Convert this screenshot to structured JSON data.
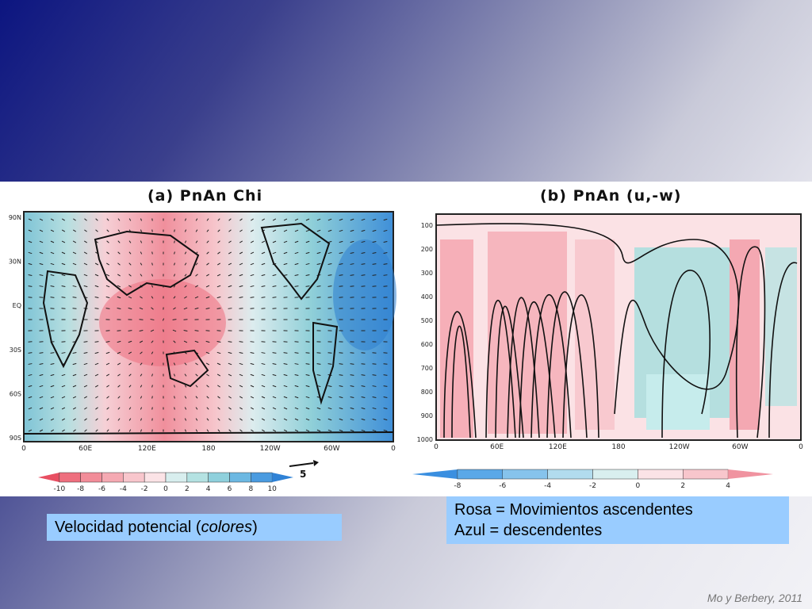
{
  "panel_a": {
    "title": "(a) PnAn   Chi",
    "x_ticks": [
      "0",
      "60E",
      "120E",
      "180",
      "120W",
      "60W",
      "0"
    ],
    "y_ticks": [
      "90N",
      "30N",
      "EQ",
      "30S",
      "60S",
      "90S"
    ],
    "colorbar_ticks": [
      "-10",
      "-8",
      "-6",
      "-4",
      "-2",
      "0",
      "2",
      "4",
      "6",
      "8",
      "10"
    ],
    "reference_vector": "5"
  },
  "panel_b": {
    "title": "(b) PnAn   (u,-w)",
    "x_ticks": [
      "0",
      "60E",
      "120E",
      "180",
      "120W",
      "60W",
      "0"
    ],
    "y_ticks": [
      "100",
      "200",
      "300",
      "400",
      "500",
      "600",
      "700",
      "800",
      "900",
      "1000"
    ],
    "colorbar_ticks": [
      "-8",
      "-6",
      "-4",
      "-2",
      "0",
      "2",
      "4"
    ]
  },
  "captions": {
    "left_prefix": "Velocidad potencial (",
    "left_italic": "colores",
    "left_suffix": ")",
    "right_line1": "Rosa = Movimientos ascendentes",
    "right_line2": "Azul = descendentes"
  },
  "credit": "Mo y Berbery, 2011",
  "colors": {
    "pink": "#f2a0a8",
    "light_pink": "#f8d0d4",
    "blue": "#4a9be0",
    "light_blue": "#a9dcdc",
    "caption_box": "#99ccff"
  }
}
